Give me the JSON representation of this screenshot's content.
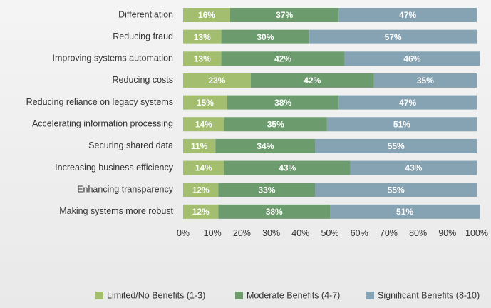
{
  "chart_data": {
    "type": "stacked_bar_horizontal",
    "categories": [
      "Differentiation",
      "Reducing fraud",
      "Improving systems automation",
      "Reducing costs",
      "Reducing reliance on legacy systems",
      "Accelerating information processing",
      "Securing shared data",
      "Increasing business efficiency",
      "Enhancing transparency",
      "Making systems more robust"
    ],
    "series": [
      {
        "name": "Limited/No Benefits  (1-3)",
        "color": "#a2be6e",
        "values": [
          16,
          13,
          13,
          23,
          15,
          14,
          11,
          14,
          12,
          12
        ],
        "value_labels": [
          "16%",
          "13%",
          "13%",
          "23%",
          "15%",
          "14%",
          "11%",
          "14%",
          "12%",
          "12%"
        ]
      },
      {
        "name": "Moderate Benefits (4-7)",
        "color": "#6c9b6d",
        "values": [
          37,
          30,
          42,
          42,
          38,
          35,
          34,
          43,
          33,
          38
        ],
        "value_labels": [
          "37%",
          "30%",
          "42%",
          "42%",
          "38%",
          "35%",
          "34%",
          "43%",
          "33%",
          "38%"
        ]
      },
      {
        "name": "Significant Benefits (8-10)",
        "color": "#86a3b3",
        "values": [
          47,
          57,
          46,
          35,
          47,
          51,
          55,
          43,
          55,
          51
        ],
        "value_labels": [
          "47%",
          "57%",
          "46%",
          "35%",
          "47%",
          "51%",
          "55%",
          "43%",
          "55%",
          "51%"
        ]
      }
    ],
    "xlim": [
      0,
      100
    ],
    "xticks": [
      {
        "value": 0,
        "label": "0%"
      },
      {
        "value": 10,
        "label": "10%"
      },
      {
        "value": 20,
        "label": "20%"
      },
      {
        "value": 30,
        "label": "30%"
      },
      {
        "value": 40,
        "label": "40%"
      },
      {
        "value": 50,
        "label": "50%"
      },
      {
        "value": 60,
        "label": "60%"
      },
      {
        "value": 70,
        "label": "70%"
      },
      {
        "value": 80,
        "label": "80%"
      },
      {
        "value": 90,
        "label": "90%"
      },
      {
        "value": 100,
        "label": "100%"
      }
    ],
    "legend": "bottom"
  }
}
